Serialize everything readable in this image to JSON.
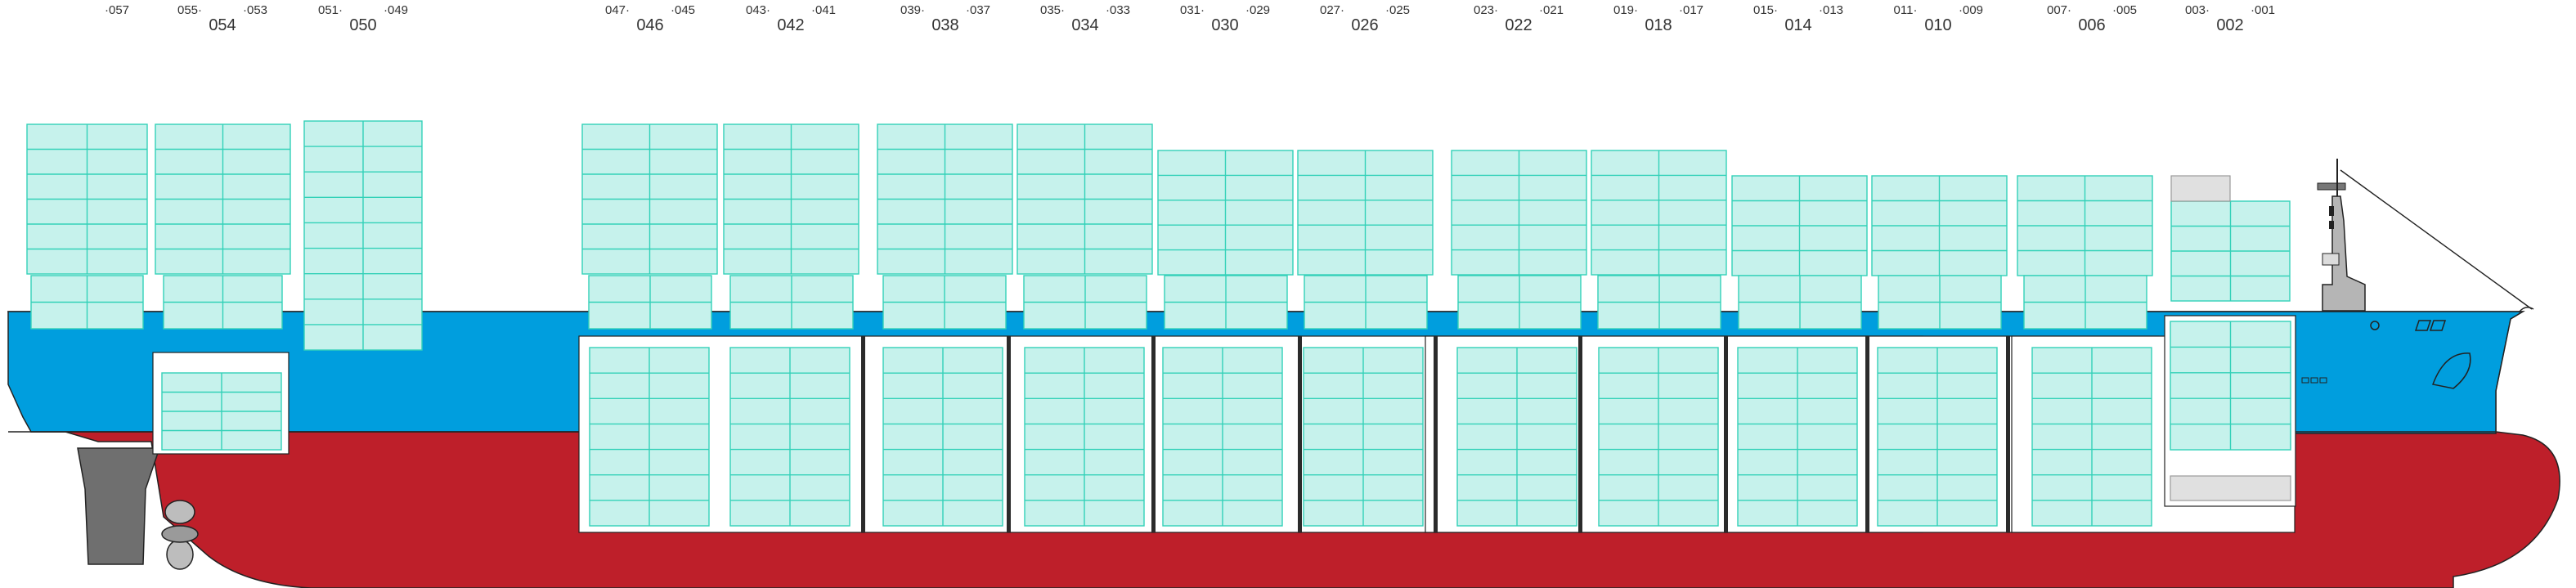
{
  "colors": {
    "hull_red": "#be1f2a",
    "hull_blue": "#009ede",
    "container_fill": "#c6f2ec",
    "container_line": "#33d1b8",
    "hold_fill": "#ffffff",
    "bulkhead": "#2b2b2b",
    "grey_slot": "#e0e0e0"
  },
  "bays": [
    {
      "main": "054",
      "left": "055",
      "right": "053"
    },
    {
      "main": "050",
      "left": "051",
      "right": "049"
    },
    {
      "main": "046",
      "left": "047",
      "right": "045"
    },
    {
      "main": "042",
      "left": "043",
      "right": "041"
    },
    {
      "main": "038",
      "left": "039",
      "right": "037"
    },
    {
      "main": "034",
      "left": "035",
      "right": "033"
    },
    {
      "main": "030",
      "left": "031",
      "right": "029"
    },
    {
      "main": "026",
      "left": "027",
      "right": "025"
    },
    {
      "main": "022",
      "left": "023",
      "right": "021"
    },
    {
      "main": "018",
      "left": "019",
      "right": "017"
    },
    {
      "main": "014",
      "left": "015",
      "right": "013"
    },
    {
      "main": "010",
      "left": "011",
      "right": "009"
    },
    {
      "main": "006",
      "left": "007",
      "right": "005"
    },
    {
      "main": "002",
      "left": "003",
      "right": "001"
    }
  ],
  "aft_bay": {
    "left": "057"
  },
  "icons": [
    "rudder-icon",
    "propeller-icon",
    "bridge-mast-icon",
    "anchor-icon",
    "bow-thruster-icon"
  ]
}
